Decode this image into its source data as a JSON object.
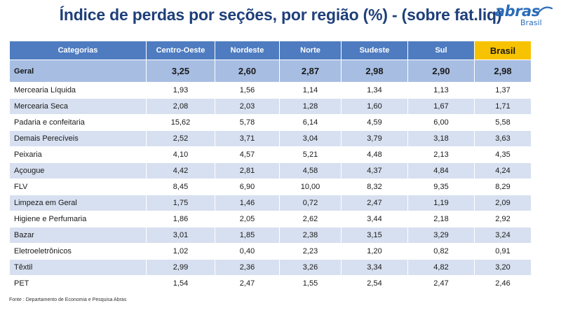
{
  "title": "Índice de perdas por seções, por região (%) -  (sobre fat.liq)",
  "logo": {
    "word": "abras",
    "sub": "Brasil"
  },
  "table": {
    "headers": [
      "Categorias",
      "Centro-Oeste",
      "Nordeste",
      "Norte",
      "Sudeste",
      "Sul",
      "Brasil"
    ],
    "geral": {
      "label": "Geral",
      "values": [
        "3,25",
        "2,60",
        "2,87",
        "2,98",
        "2,90",
        "2,98"
      ]
    },
    "rows": [
      {
        "label": "Mercearia Líquida",
        "values": [
          "1,93",
          "1,56",
          "1,14",
          "1,34",
          "1,13",
          "1,37"
        ]
      },
      {
        "label": "Mercearia Seca",
        "values": [
          "2,08",
          "2,03",
          "1,28",
          "1,60",
          "1,67",
          "1,71"
        ]
      },
      {
        "label": "Padaria e confeitaria",
        "values": [
          "15,62",
          "5,78",
          "6,14",
          "4,59",
          "6,00",
          "5,58"
        ]
      },
      {
        "label": "Demais Perecíveis",
        "values": [
          "2,52",
          "3,71",
          "3,04",
          "3,79",
          "3,18",
          "3,63"
        ]
      },
      {
        "label": "Peixaria",
        "values": [
          "4,10",
          "4,57",
          "5,21",
          "4,48",
          "2,13",
          "4,35"
        ]
      },
      {
        "label": "Açougue",
        "values": [
          "4,42",
          "2,81",
          "4,58",
          "4,37",
          "4,84",
          "4,24"
        ]
      },
      {
        "label": "FLV",
        "values": [
          "8,45",
          "6,90",
          "10,00",
          "8,32",
          "9,35",
          "8,29"
        ]
      },
      {
        "label": "Limpeza em Geral",
        "values": [
          "1,75",
          "1,46",
          "0,72",
          "2,47",
          "1,19",
          "2,09"
        ]
      },
      {
        "label": "Higiene e Perfumaria",
        "values": [
          "1,86",
          "2,05",
          "2,62",
          "3,44",
          "2,18",
          "2,92"
        ]
      },
      {
        "label": "Bazar",
        "values": [
          "3,01",
          "1,85",
          "2,38",
          "3,15",
          "3,29",
          "3,24"
        ]
      },
      {
        "label": "Eletroeletrônicos",
        "values": [
          "1,02",
          "0,40",
          "2,23",
          "1,20",
          "0,82",
          "0,91"
        ]
      },
      {
        "label": "Têxtil",
        "values": [
          "2,99",
          "2,36",
          "3,26",
          "3,34",
          "4,82",
          "3,20"
        ]
      },
      {
        "label": "PET",
        "values": [
          "1,54",
          "2,47",
          "1,55",
          "2,54",
          "2,47",
          "2,46"
        ]
      }
    ]
  },
  "source": "Fonte : Departamento de Economia e Pesquisa Abras",
  "colors": {
    "title": "#1f3f7a",
    "header": "#4f7cc0",
    "brasil_header": "#f7c200",
    "geral_row": "#a7bde2",
    "stripe": "#d7e0f0",
    "logo": "#2c6cb7"
  }
}
